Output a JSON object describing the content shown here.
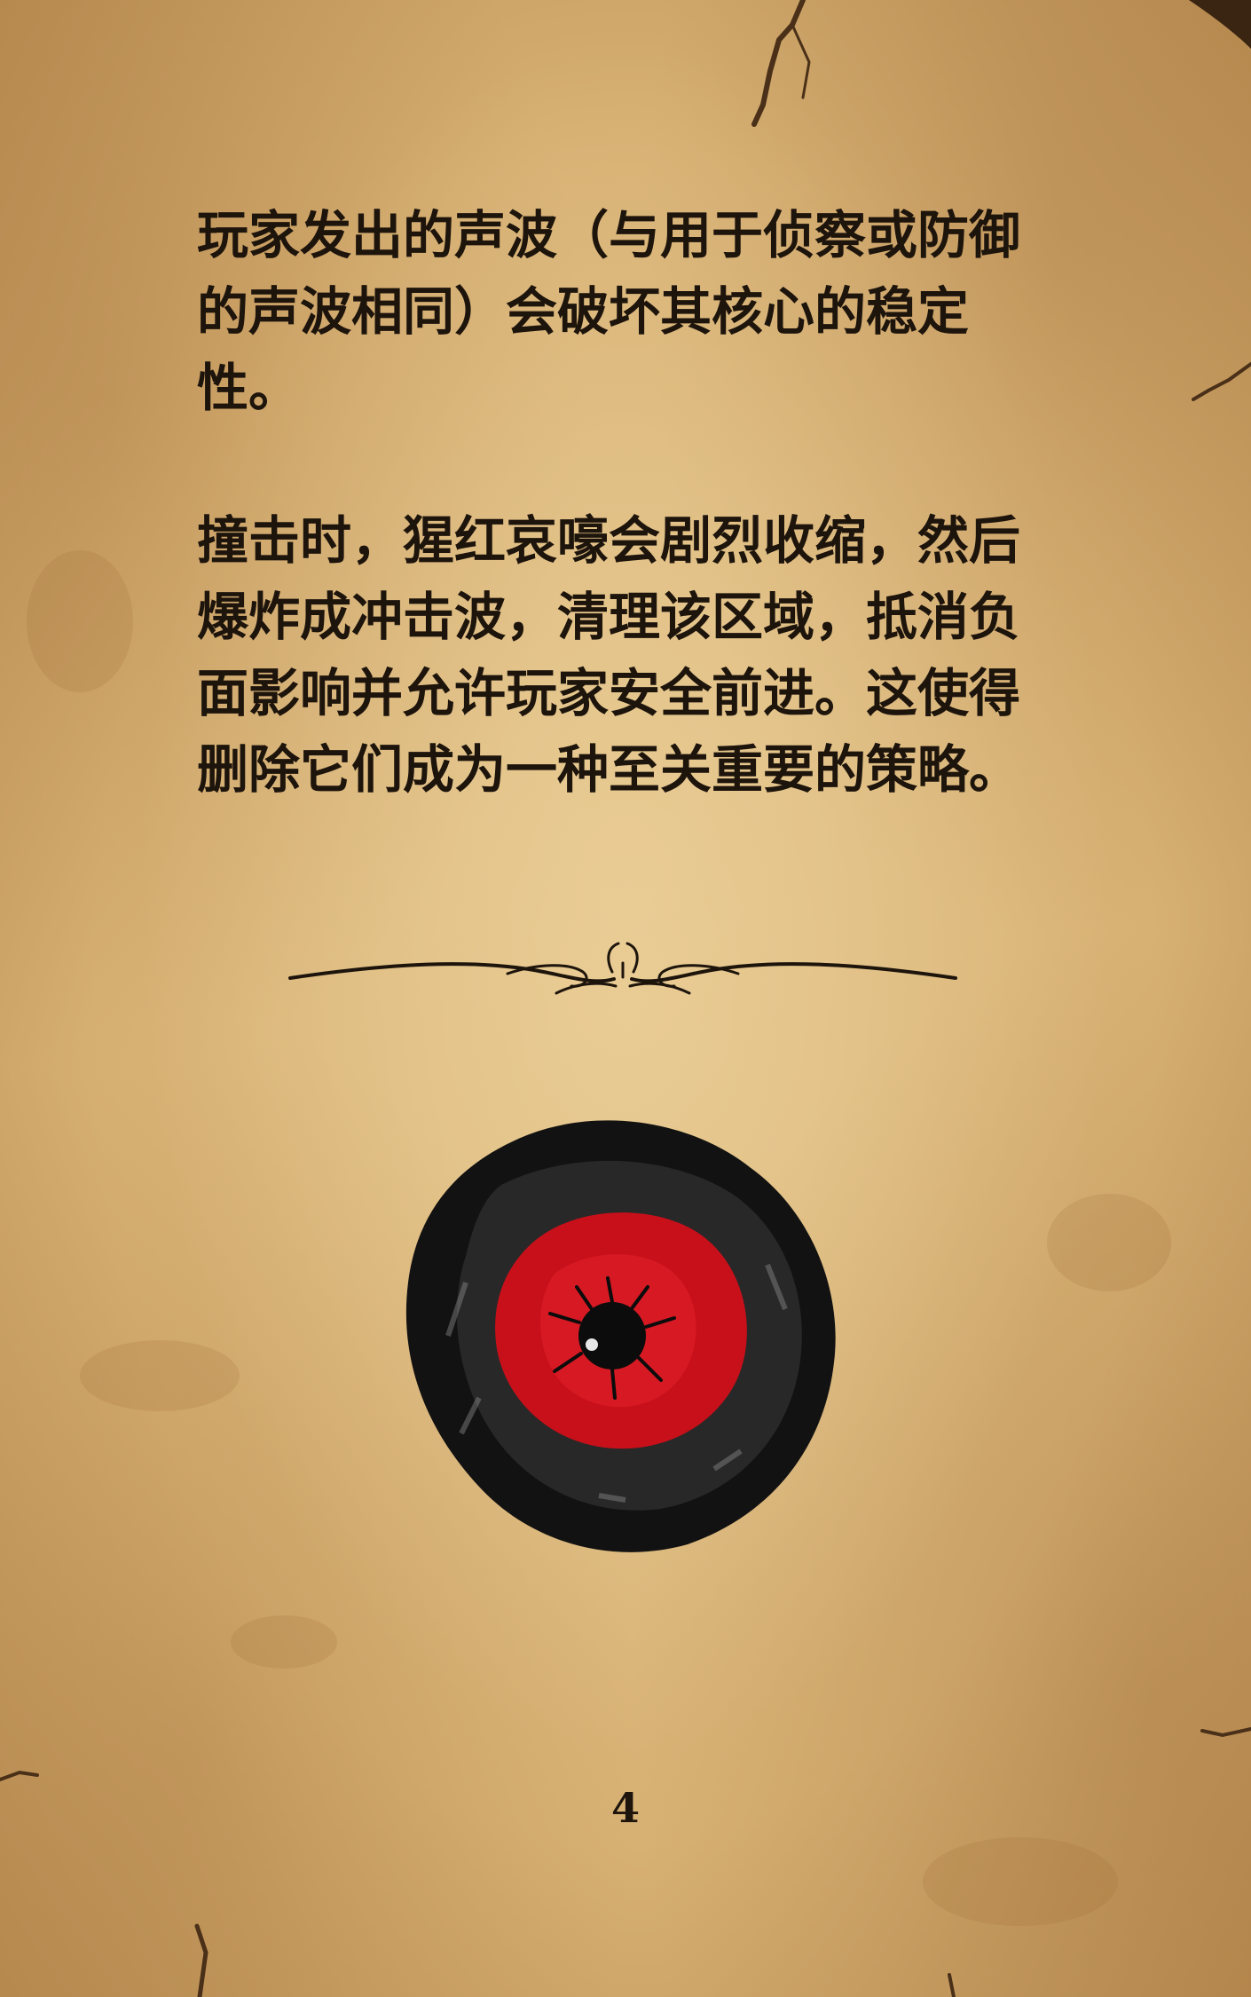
{
  "document": {
    "paragraphs": [
      "玩家发出的声波（与用于侦察或防御的声波相同）会破坏其核心的稳定性。",
      "撞击时，猩红哀嚎会剧烈收缩，然后爆炸成冲击波，清理该区域，抵消负面影响并允许玩家安全前进。这使得删除它们成为一种至关重要的策略。"
    ],
    "page_number": "4"
  },
  "style": {
    "paper_color": "#d9b577",
    "text_color": "#1d140c",
    "core_color": "#c8101a",
    "shell_color": "#121212"
  },
  "illustrations": {
    "divider": "ornamental-scroll-divider",
    "creature": "scarlet-wail-orb"
  }
}
